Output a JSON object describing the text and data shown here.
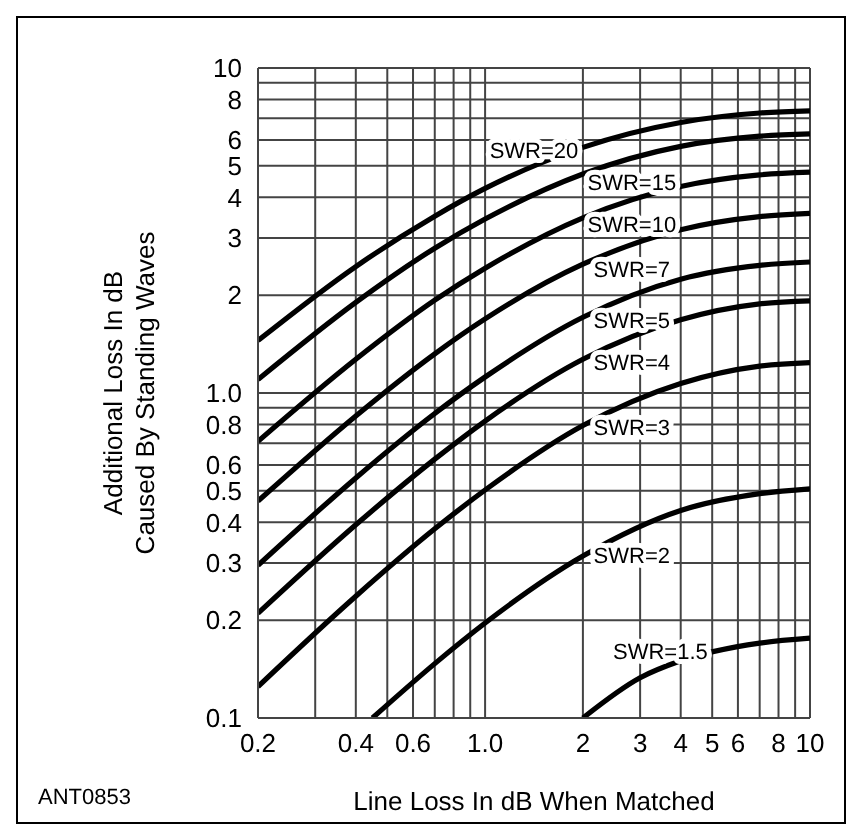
{
  "chart_data": {
    "type": "line",
    "xlabel": "Line Loss In dB When Matched",
    "ylabel": "Additional Loss In dB\nCaused By Standing Waves",
    "log": "xy",
    "grid": true,
    "marker": "none",
    "line_style": "solid",
    "xlim": [
      0.2,
      10
    ],
    "ylim": [
      0.1,
      10
    ],
    "xticks": [
      0.2,
      {
        "value": 0.3,
        "label": null
      },
      0.4,
      {
        "value": 0.5,
        "label": null
      },
      0.6,
      {
        "value": 0.7,
        "label": null
      },
      {
        "value": 0.8,
        "label": null
      },
      {
        "value": 0.9,
        "label": null
      },
      {
        "value": 1,
        "label": "1.0"
      },
      2,
      3,
      4,
      5,
      6,
      {
        "value": 7,
        "label": null
      },
      8,
      {
        "value": 9,
        "label": null
      },
      10
    ],
    "yticks": [
      0.1,
      0.2,
      0.3,
      0.4,
      0.5,
      0.6,
      {
        "value": 0.7,
        "label": null
      },
      0.8,
      {
        "value": 0.9,
        "label": null
      },
      {
        "value": 1,
        "label": "1.0"
      },
      2,
      3,
      4,
      5,
      6,
      {
        "value": 7,
        "label": null
      },
      8,
      {
        "value": 9,
        "label": null
      },
      10
    ],
    "series": [
      {
        "name": "SWR=20",
        "color": "#000000",
        "x": [
          0.2,
          0.4,
          0.7,
          1,
          2,
          4,
          7,
          10
        ],
        "values": [
          1.45,
          2.45,
          3.5,
          4.26,
          5.7,
          6.8,
          7.27,
          7.38
        ]
      },
      {
        "name": "SWR=15",
        "color": "#000000",
        "x": [
          0.2,
          0.4,
          0.7,
          1,
          2,
          4,
          7,
          10
        ],
        "values": [
          1.1,
          1.9,
          2.79,
          3.43,
          4.72,
          5.74,
          6.17,
          6.27
        ]
      },
      {
        "name": "SWR=10",
        "color": "#000000",
        "x": [
          0.2,
          0.4,
          0.7,
          1,
          2,
          4,
          7,
          10
        ],
        "values": [
          0.71,
          1.27,
          1.93,
          2.42,
          3.46,
          4.32,
          4.69,
          4.78
        ]
      },
      {
        "name": "SWR=7",
        "color": "#000000",
        "x": [
          0.2,
          0.4,
          0.7,
          1,
          2,
          4,
          7,
          10
        ],
        "values": [
          0.465,
          0.85,
          1.32,
          1.69,
          2.49,
          3.18,
          3.49,
          3.57
        ]
      },
      {
        "name": "SWR=5",
        "color": "#000000",
        "x": [
          0.2,
          0.4,
          0.7,
          1,
          2,
          4,
          7,
          10
        ],
        "values": [
          0.295,
          0.548,
          0.865,
          1.12,
          1.71,
          2.24,
          2.47,
          2.53
        ]
      },
      {
        "name": "SWR=4",
        "color": "#000000",
        "x": [
          0.2,
          0.4,
          0.7,
          1,
          2,
          4,
          7,
          10
        ],
        "values": [
          0.21,
          0.393,
          0.626,
          0.82,
          1.27,
          1.68,
          1.88,
          1.92
        ]
      },
      {
        "name": "SWR=3",
        "color": "#000000",
        "x": [
          0.2,
          0.4,
          0.7,
          1,
          2,
          4,
          7,
          10
        ],
        "values": [
          0.125,
          0.237,
          0.382,
          0.503,
          0.794,
          1.07,
          1.21,
          1.24
        ]
      },
      {
        "name": "SWR=2",
        "color": "#000000",
        "x": [
          0.45,
          0.7,
          1,
          2,
          4,
          7,
          10
        ],
        "values": [
          0.1,
          0.147,
          0.196,
          0.315,
          0.435,
          0.49,
          0.507
        ]
      },
      {
        "name": "SWR=1.5",
        "color": "#000000",
        "x": [
          2,
          3,
          4,
          7,
          10
        ],
        "values": [
          0.1,
          0.133,
          0.15,
          0.17,
          0.176
        ]
      }
    ],
    "annotations": [
      "ANT0853"
    ]
  }
}
